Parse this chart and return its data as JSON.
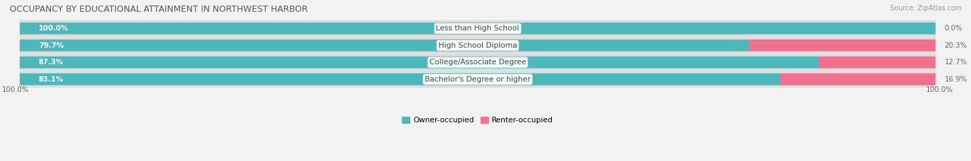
{
  "title": "OCCUPANCY BY EDUCATIONAL ATTAINMENT IN NORTHWEST HARBOR",
  "source": "Source: ZipAtlas.com",
  "categories": [
    "Less than High School",
    "High School Diploma",
    "College/Associate Degree",
    "Bachelor's Degree or higher"
  ],
  "owner_pct": [
    100.0,
    79.7,
    87.3,
    83.1
  ],
  "renter_pct": [
    0.0,
    20.3,
    12.7,
    16.9
  ],
  "owner_color": "#4db8bb",
  "renter_color": "#f07090",
  "renter_color_light": "#f5aabb",
  "bg_color": "#f2f2f2",
  "row_bg_color": "#e0e0e0",
  "bar_track_color": "#e8e8e8",
  "title_color": "#555555",
  "source_color": "#999999",
  "pct_label_color_inside": "#ffffff",
  "pct_label_color_outside": "#666666",
  "cat_label_color": "#444444",
  "left_axis_label": "100.0%",
  "right_axis_label": "100.0%",
  "legend_owner": "Owner-occupied",
  "legend_renter": "Renter-occupied"
}
